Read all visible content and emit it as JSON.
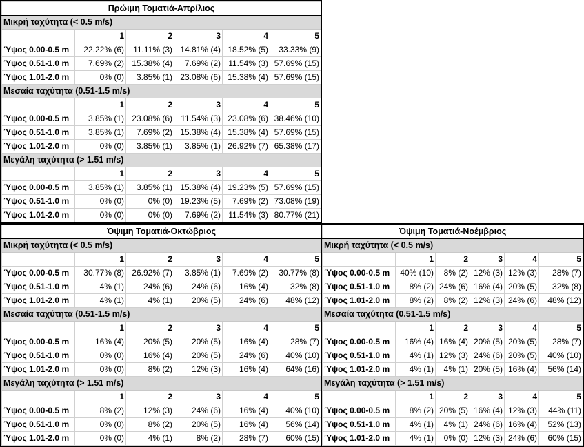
{
  "labels": {
    "rows": [
      "Ύψος 0.00-0.5 m",
      "Ύψος 0.51-1.0 m",
      "Ύψος 1.01-2.0 m"
    ],
    "cols": [
      "1",
      "2",
      "3",
      "4",
      "5"
    ],
    "sections": [
      "Μικρή ταχύτητα (< 0.5 m/s)",
      "Μεσαία ταχύτητα (0.51-1.5 m/s)",
      "Μεγάλη ταχύτητα (> 1.51 m/s)"
    ]
  },
  "blocks": [
    {
      "id": "april",
      "title": "Πρώιμη Τοματιά-Απρίλιος",
      "sections": [
        [
          [
            "22.22% (6)",
            "11.11% (3)",
            "14.81% (4)",
            "18.52% (5)",
            "33.33% (9)"
          ],
          [
            "7.69% (2)",
            "15.38% (4)",
            "7.69% (2)",
            "11.54% (3)",
            "57.69% (15)"
          ],
          [
            "0% (0)",
            "3.85% (1)",
            "23.08% (6)",
            "15.38% (4)",
            "57.69% (15)"
          ]
        ],
        [
          [
            "3.85% (1)",
            "23.08% (6)",
            "11.54% (3)",
            "23.08% (6)",
            "38.46% (10)"
          ],
          [
            "3.85% (1)",
            "7.69% (2)",
            "15.38% (4)",
            "15.38% (4)",
            "57.69% (15)"
          ],
          [
            "0% (0)",
            "3.85% (1)",
            "3.85% (1)",
            "26.92% (7)",
            "65.38% (17)"
          ]
        ],
        [
          [
            "3.85% (1)",
            "3.85% (1)",
            "15.38% (4)",
            "19.23% (5)",
            "57.69% (15)"
          ],
          [
            "0% (0)",
            "0% (0)",
            "19.23% (5)",
            "7.69% (2)",
            "73.08% (19)"
          ],
          [
            "0% (0)",
            "0% (0)",
            "7.69% (2)",
            "11.54% (3)",
            "80.77% (21)"
          ]
        ]
      ]
    },
    {
      "id": "oct",
      "title": "Όψιμη Τοματιά-Οκτώβριος",
      "sections": [
        [
          [
            "30.77% (8)",
            "26.92% (7)",
            "3.85% (1)",
            "7.69% (2)",
            "30.77% (8)"
          ],
          [
            "4% (1)",
            "24% (6)",
            "24% (6)",
            "16% (4)",
            "32% (8)"
          ],
          [
            "4% (1)",
            "4% (1)",
            "20% (5)",
            "24% (6)",
            "48% (12)"
          ]
        ],
        [
          [
            "16% (4)",
            "20% (5)",
            "20% (5)",
            "16% (4)",
            "28% (7)"
          ],
          [
            "0% (0)",
            "16% (4)",
            "20% (5)",
            "24% (6)",
            "40% (10)"
          ],
          [
            "0% (0)",
            "8% (2)",
            "12% (3)",
            "16% (4)",
            "64% (16)"
          ]
        ],
        [
          [
            "8% (2)",
            "12% (3)",
            "24% (6)",
            "16% (4)",
            "40% (10)"
          ],
          [
            "0% (0)",
            "8% (2)",
            "20% (5)",
            "16% (4)",
            "56% (14)"
          ],
          [
            "0% (0)",
            "4% (1)",
            "8% (2)",
            "28% (7)",
            "60% (15)"
          ]
        ]
      ]
    },
    {
      "id": "nov",
      "title": "Όψιμη Τοματιά-Νοέμβριος",
      "sections": [
        [
          [
            "40% (10)",
            "8% (2)",
            "12% (3)",
            "12% (3)",
            "28% (7)"
          ],
          [
            "8% (2)",
            "24% (6)",
            "16% (4)",
            "20% (5)",
            "32% (8)"
          ],
          [
            "8% (2)",
            "8% (2)",
            "12% (3)",
            "24% (6)",
            "48% (12)"
          ]
        ],
        [
          [
            "16% (4)",
            "16% (4)",
            "20% (5)",
            "20% (5)",
            "28% (7)"
          ],
          [
            "4% (1)",
            "12% (3)",
            "24% (6)",
            "20% (5)",
            "40% (10)"
          ],
          [
            "4% (1)",
            "4% (1)",
            "20% (5)",
            "16% (4)",
            "56% (14)"
          ]
        ],
        [
          [
            "8% (2)",
            "20% (5)",
            "16% (4)",
            "12% (3)",
            "44% (11)"
          ],
          [
            "4% (1)",
            "4% (1)",
            "24% (6)",
            "16% (4)",
            "52% (13)"
          ],
          [
            "4% (1)",
            "0% (0)",
            "12% (3)",
            "24% (6)",
            "60% (15)"
          ]
        ]
      ]
    }
  ]
}
